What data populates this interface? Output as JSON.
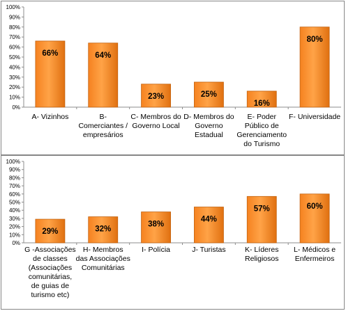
{
  "colors": {
    "bar_top": "#ffa347",
    "bar_mid": "#f58220",
    "bar_bottom": "#e07010",
    "bar_stroke": "#c2620e",
    "axis": "#8c8c8c",
    "grid": "#d9d9d9"
  },
  "chart_data": [
    {
      "type": "bar",
      "title": "",
      "xlabel": "",
      "ylabel": "",
      "ylim": [
        0,
        100
      ],
      "y_ticks": [
        "0%",
        "10%",
        "20%",
        "30%",
        "40%",
        "50%",
        "60%",
        "70%",
        "80%",
        "90%",
        "100%"
      ],
      "categories": [
        "A- Vizinhos",
        "B- Comerciantes / empresários",
        "C- Membros do Governo Local",
        "D- Membros do Governo Estadual",
        "E- Poder Público de Gerenciamento do Turismo",
        "F- Universidade"
      ],
      "category_lines": [
        [
          "A- Vizinhos"
        ],
        [
          "B-",
          "Comerciantes /",
          "empresários"
        ],
        [
          "C- Membros do",
          "Governo Local"
        ],
        [
          "D- Membros do",
          "Governo",
          "Estadual"
        ],
        [
          "E- Poder",
          "Público de",
          "Gerenciamento",
          "do Turismo"
        ],
        [
          "F- Universidade"
        ]
      ],
      "values": [
        66,
        64,
        23,
        25,
        16,
        80
      ],
      "data_labels": [
        "66%",
        "64%",
        "23%",
        "25%",
        "16%",
        "80%"
      ],
      "grid": false,
      "legend": "none"
    },
    {
      "type": "bar",
      "title": "",
      "xlabel": "",
      "ylabel": "",
      "ylim": [
        0,
        100
      ],
      "y_ticks": [
        "0%",
        "10%",
        "20%",
        "30%",
        "40%",
        "50%",
        "60%",
        "70%",
        "80%",
        "90%",
        "100%"
      ],
      "categories": [
        "G -Associações de classes (Associações comunitárias, de guias de turismo etc)",
        "H- Membros das Associações Comunitárias",
        "I- Polícia",
        "J- Turistas",
        "K- Líderes Religiosos",
        "L- Médicos e Enfermeiros"
      ],
      "category_lines": [
        [
          "G -Associações",
          "de classes",
          "(Associações",
          "comunitárias,",
          "de guias de",
          "turismo etc)"
        ],
        [
          "H- Membros",
          "das Associações",
          "Comunitárias"
        ],
        [
          "I- Polícia"
        ],
        [
          "J- Turistas"
        ],
        [
          "K- Líderes",
          "Religiosos"
        ],
        [
          "L- Médicos e",
          "Enfermeiros"
        ]
      ],
      "values": [
        29,
        32,
        38,
        44,
        57,
        60
      ],
      "data_labels": [
        "29%",
        "32%",
        "38%",
        "44%",
        "57%",
        "60%"
      ],
      "grid": false,
      "legend": "none"
    }
  ]
}
